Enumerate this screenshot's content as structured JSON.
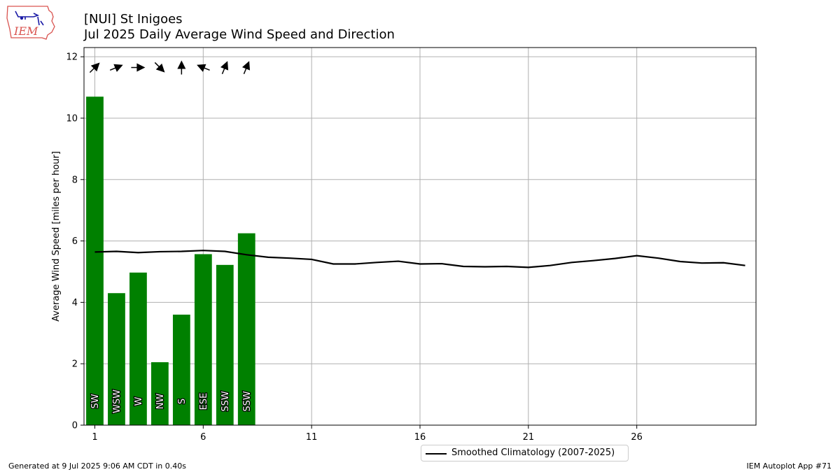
{
  "header": {
    "title_line1": "[NUI] St Inigoes",
    "title_line2": "Jul 2025 Daily Average Wind Speed and Direction"
  },
  "logo": {
    "text": "IEM",
    "colors": {
      "outline": "#d9534f",
      "ink": "#1a1aa6"
    }
  },
  "footer": {
    "left": "Generated at 9 Jul 2025 9:06 AM CDT in 0.40s",
    "right": "IEM Autoplot App #71"
  },
  "legend": {
    "climatology_label": "Smoothed Climatology (2007-2025)"
  },
  "colors": {
    "bar": "#008000",
    "line": "#000000",
    "grid": "#b0b0b0"
  },
  "chart_data": {
    "type": "bar",
    "ylabel": "Average Wind Speed [miles per hour]",
    "xlim": [
      0.5,
      31.5
    ],
    "ylim": [
      0,
      12.3
    ],
    "xticks": [
      1,
      6,
      11,
      16,
      21,
      26
    ],
    "yticks": [
      0,
      2,
      4,
      6,
      8,
      10,
      12
    ],
    "grid": true,
    "legend_position": "below-center",
    "bars": {
      "days": [
        1,
        2,
        3,
        4,
        5,
        6,
        7,
        8
      ],
      "values": [
        10.7,
        4.3,
        4.97,
        2.05,
        3.6,
        5.57,
        5.22,
        6.25
      ],
      "direction_labels": [
        "SW",
        "WSW",
        "W",
        "NW",
        "S",
        "ESE",
        "SSW",
        "SSW"
      ],
      "arrow_directions_deg": [
        225,
        247.5,
        270,
        315,
        180,
        112.5,
        202.5,
        202.5
      ]
    },
    "series": [
      {
        "name": "Smoothed Climatology (2007-2025)",
        "x": [
          1,
          2,
          3,
          4,
          5,
          6,
          7,
          8,
          9,
          10,
          11,
          12,
          13,
          14,
          15,
          16,
          17,
          18,
          19,
          20,
          21,
          22,
          23,
          24,
          25,
          26,
          27,
          28,
          29,
          30,
          31
        ],
        "values": [
          5.64,
          5.66,
          5.62,
          5.65,
          5.66,
          5.69,
          5.66,
          5.55,
          5.47,
          5.44,
          5.4,
          5.25,
          5.25,
          5.3,
          5.34,
          5.25,
          5.26,
          5.17,
          5.16,
          5.17,
          5.14,
          5.2,
          5.3,
          5.36,
          5.43,
          5.52,
          5.44,
          5.33,
          5.28,
          5.29,
          5.2
        ]
      }
    ]
  }
}
